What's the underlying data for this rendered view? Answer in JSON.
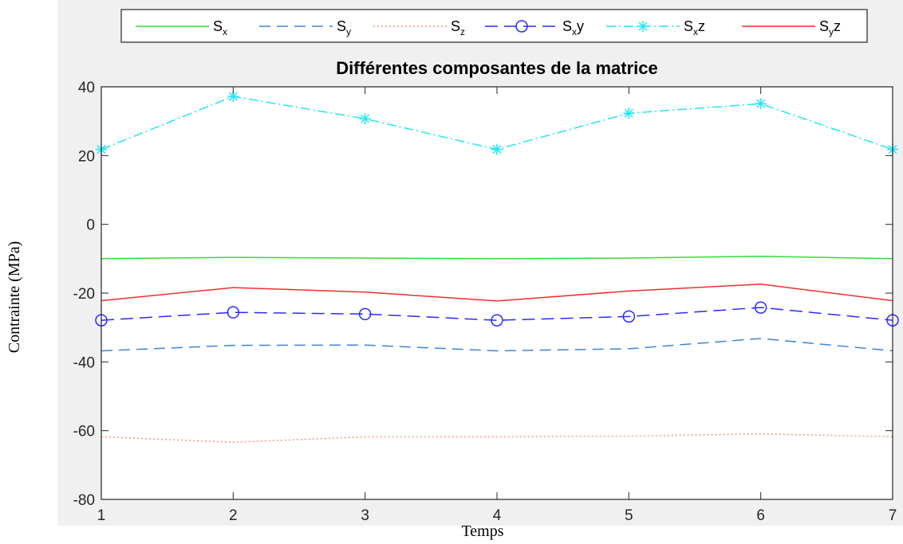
{
  "chart_data": {
    "type": "line",
    "title": "Différentes composantes de la matrice",
    "xlabel": "Temps",
    "ylabel": "Contrainte (MPa)",
    "x": [
      1,
      2,
      3,
      4,
      5,
      6,
      7
    ],
    "xlim": [
      1,
      7
    ],
    "ylim": [
      -80,
      40
    ],
    "xticks": [
      1,
      2,
      3,
      4,
      5,
      6,
      7
    ],
    "yticks": [
      -80,
      -60,
      -40,
      -20,
      0,
      20,
      40
    ],
    "grid": false,
    "legend_position": "top",
    "series": [
      {
        "name": "S",
        "sub": "x",
        "suffix": "",
        "color": "#33dd33",
        "dash": "",
        "marker": "none",
        "values": [
          -10.0,
          -9.6,
          -9.8,
          -10.0,
          -9.8,
          -9.3,
          -10.0
        ]
      },
      {
        "name": "S",
        "sub": "y",
        "suffix": "",
        "color": "#3a86d8",
        "dash": "14 8",
        "marker": "none",
        "values": [
          -36.8,
          -35.2,
          -35.1,
          -36.8,
          -36.2,
          -33.2,
          -36.8
        ]
      },
      {
        "name": "S",
        "sub": "z",
        "suffix": "",
        "color": "#f09a7c",
        "dash": "2 3",
        "marker": "none",
        "values": [
          -61.8,
          -63.4,
          -61.8,
          -61.8,
          -61.6,
          -60.9,
          -61.8
        ]
      },
      {
        "name": "S",
        "sub": "x",
        "suffix": "y",
        "color": "#2a2aff",
        "dash": "16 8",
        "marker": "circle",
        "values": [
          -27.9,
          -25.6,
          -26.1,
          -27.9,
          -26.8,
          -24.2,
          -27.9
        ]
      },
      {
        "name": "S",
        "sub": "x",
        "suffix": "z",
        "color": "#22e6f2",
        "dash": "12 4 2 4",
        "marker": "star",
        "values": [
          21.8,
          37.2,
          30.7,
          21.8,
          32.3,
          35.1,
          21.8
        ]
      },
      {
        "name": "S",
        "sub": "y",
        "suffix": "z",
        "color": "#ee3030",
        "dash": "",
        "marker": "none",
        "values": [
          -22.2,
          -18.4,
          -19.7,
          -22.3,
          -19.4,
          -17.4,
          -22.2
        ]
      }
    ]
  }
}
